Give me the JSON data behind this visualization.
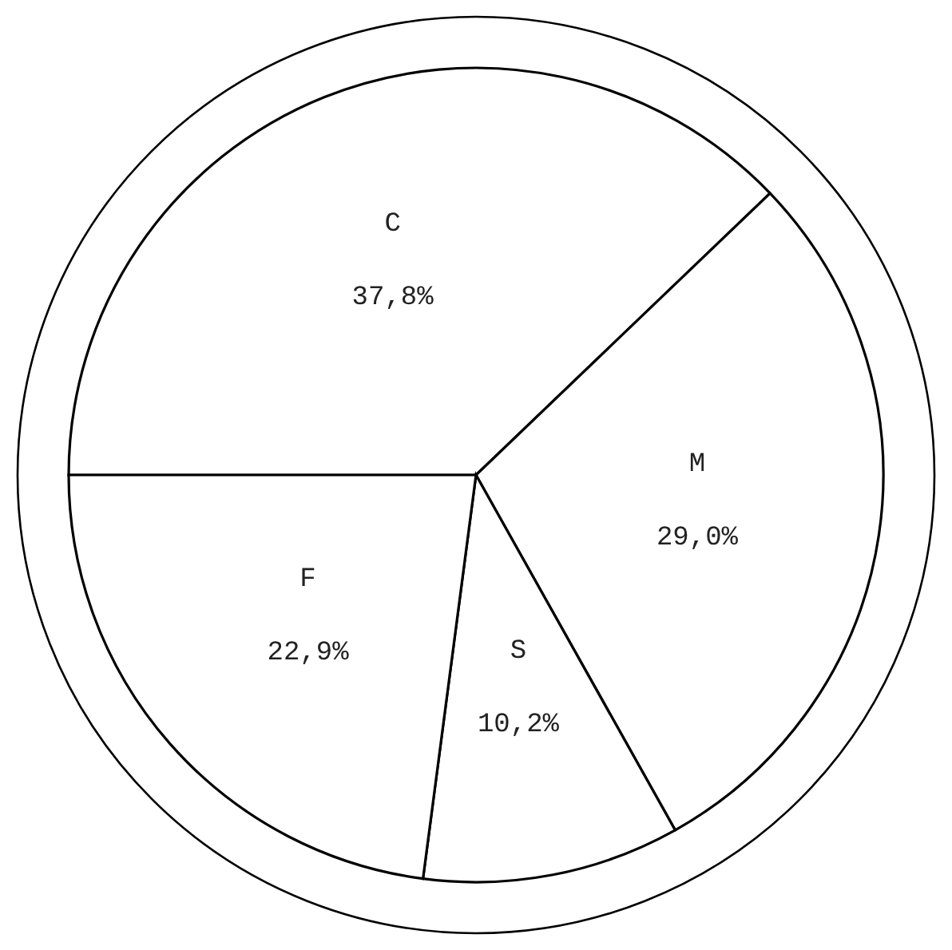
{
  "chart_data": {
    "type": "pie",
    "categories": [
      "C",
      "M",
      "S",
      "F"
    ],
    "values": [
      37.8,
      29.0,
      10.2,
      22.9
    ],
    "value_labels": [
      "37,8%",
      "29,0%",
      "10,2%",
      "22,9%"
    ],
    "colors": [
      "#ffffff",
      "#ffffff",
      "#ffffff",
      "#ffffff"
    ]
  }
}
